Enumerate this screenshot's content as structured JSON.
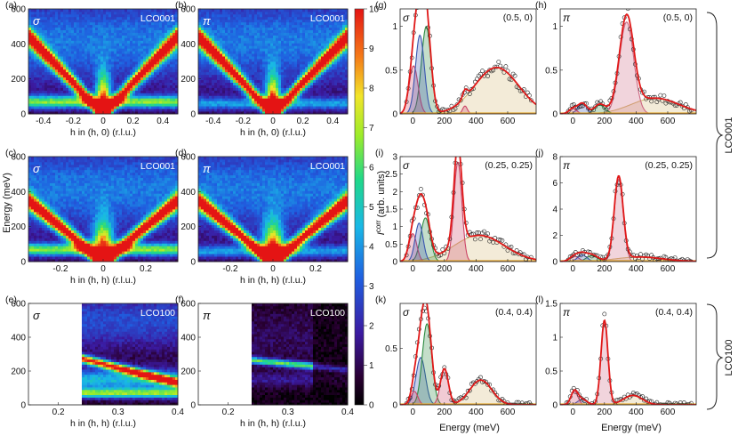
{
  "figure": {
    "colorbar": {
      "ticks": [
        "0",
        "1",
        "2",
        "3",
        "4",
        "5",
        "6",
        "7",
        "8",
        "9",
        "10"
      ],
      "vmin": 0,
      "vmax": 10
    },
    "ylabel_energy": "Energy (meV)",
    "xlabel_energy": "Energy (meV)",
    "ylabel_intensity_main": "I",
    "ylabel_intensity_sup": "corr",
    "ylabel_intensity_unit": "(arb. units)",
    "bracket_labels": [
      "LCO001",
      "LCO100"
    ]
  },
  "chart_data": [
    {
      "id": "a",
      "type": "heatmap",
      "panel": "(a)",
      "pol": "σ",
      "sample": "LCO001",
      "xlabel": "h in (h, 0) (r.l.u.)",
      "xlim": [
        -0.5,
        0.5
      ],
      "xticks": [
        "-0.4",
        "-0.2",
        "0",
        "0.2",
        "0.4"
      ],
      "ylim": [
        0,
        600
      ],
      "yticks": [
        "0",
        "200",
        "400",
        "600"
      ],
      "dispersion": "400|h|/0.45"
    },
    {
      "id": "b",
      "type": "heatmap",
      "panel": "(b)",
      "pol": "π",
      "sample": "LCO001",
      "xlabel": "h in (h, 0) (r.l.u.)",
      "xlim": [
        -0.5,
        0.5
      ],
      "xticks": [
        "-0.4",
        "-0.2",
        "0",
        "0.2",
        "0.4"
      ],
      "ylim": [
        0,
        600
      ],
      "yticks": [
        "0",
        "200",
        "400",
        "600"
      ],
      "dispersion": "400|h|/0.45"
    },
    {
      "id": "c",
      "type": "heatmap",
      "panel": "(c)",
      "pol": "σ",
      "sample": "LCO001",
      "xlabel": "h in (h, h) (r.l.u.)",
      "xlim": [
        -0.35,
        0.35
      ],
      "xticks": [
        "-0.2",
        "0",
        "0.2"
      ],
      "ylim": [
        0,
        600
      ],
      "yticks": [
        "0",
        "200",
        "400",
        "600"
      ],
      "dispersion": "300|h|/0.3"
    },
    {
      "id": "d",
      "type": "heatmap",
      "panel": "(d)",
      "pol": "π",
      "sample": "LCO001",
      "xlabel": "h in (h, h) (r.l.u.)",
      "xlim": [
        -0.35,
        0.35
      ],
      "xticks": [
        "-0.2",
        "0",
        "0.2"
      ],
      "ylim": [
        0,
        600
      ],
      "yticks": [
        "0",
        "200",
        "400",
        "600"
      ],
      "dispersion": "300|h|/0.3"
    },
    {
      "id": "e",
      "type": "heatmap",
      "panel": "(e)",
      "pol": "σ",
      "sample": "LCO100",
      "xlabel": "h in (h, h) (r.l.u.)",
      "xlim": [
        0.15,
        0.4
      ],
      "xticks": [
        "0.2",
        "0.3",
        "0.4"
      ],
      "ylim": [
        0,
        600
      ],
      "yticks": [
        "0",
        "200",
        "400",
        "600"
      ],
      "data_xrange": [
        0.24,
        0.4
      ]
    },
    {
      "id": "f",
      "type": "heatmap",
      "panel": "(f)",
      "pol": "π",
      "sample": "LCO100",
      "xlabel": "h in (h, h) (r.l.u.)",
      "xlim": [
        0.15,
        0.4
      ],
      "xticks": [
        "0.2",
        "0.3",
        "0.4"
      ],
      "ylim": [
        0,
        600
      ],
      "yticks": [
        "0",
        "200",
        "400",
        "600"
      ],
      "data_xrange": [
        0.24,
        0.4
      ]
    },
    {
      "id": "g",
      "type": "line",
      "panel": "(g)",
      "pol": "σ",
      "q": "(0.5, 0)",
      "xlim": [
        -80,
        780
      ],
      "xticks": [
        "0",
        "200",
        "400",
        "600"
      ],
      "ylim": [
        0,
        1.2
      ],
      "yticks": [
        "0",
        "0.5",
        "1"
      ],
      "peaks": [
        {
          "c": 5,
          "a": 0.55,
          "w": 28,
          "col": "#cc4466"
        },
        {
          "c": 45,
          "a": 0.9,
          "w": 28,
          "col": "#3a56b0"
        },
        {
          "c": 85,
          "a": 1.0,
          "w": 30,
          "col": "#2b8a40"
        },
        {
          "c": 330,
          "a": 0.09,
          "w": 15,
          "col": "#cc4466"
        },
        {
          "c": 530,
          "a": 0.53,
          "w": 140,
          "col": "#d4b872"
        }
      ]
    },
    {
      "id": "h",
      "type": "line",
      "panel": "(h)",
      "pol": "π",
      "q": "(0.5, 0)",
      "xlim": [
        -80,
        780
      ],
      "xticks": [
        "0",
        "200",
        "400",
        "600"
      ],
      "ylim": [
        0,
        1.2
      ],
      "yticks": [
        "0",
        "0.5",
        "1"
      ],
      "peaks": [
        {
          "c": 0,
          "a": 0.06,
          "w": 25,
          "col": "#cc4466"
        },
        {
          "c": 60,
          "a": 0.12,
          "w": 28,
          "col": "#3a56b0"
        },
        {
          "c": 170,
          "a": 0.1,
          "w": 35,
          "col": "#2b8a40"
        },
        {
          "c": 340,
          "a": 1.05,
          "w": 45,
          "col": "#cc6680"
        },
        {
          "c": 520,
          "a": 0.18,
          "w": 150,
          "col": "#d4b872"
        }
      ]
    },
    {
      "id": "i",
      "type": "line",
      "panel": "(i)",
      "pol": "σ",
      "q": "(0.25, 0.25)",
      "xlim": [
        -80,
        780
      ],
      "xticks": [
        "0",
        "200",
        "400",
        "600"
      ],
      "ylim": [
        0,
        3
      ],
      "yticks": [
        "0",
        "0.5",
        "1",
        "1.5",
        "2",
        "2.5",
        "3"
      ],
      "peaks": [
        {
          "c": 0,
          "a": 0.8,
          "w": 25,
          "col": "#cc4466"
        },
        {
          "c": 40,
          "a": 1.1,
          "w": 25,
          "col": "#3a56b0"
        },
        {
          "c": 80,
          "a": 1.25,
          "w": 30,
          "col": "#2b8a40"
        },
        {
          "c": 285,
          "a": 2.85,
          "w": 25,
          "col": "#cc4466"
        },
        {
          "c": 420,
          "a": 0.75,
          "w": 160,
          "col": "#d4b872"
        }
      ]
    },
    {
      "id": "j",
      "type": "line",
      "panel": "(j)",
      "pol": "π",
      "q": "(0.25, 0.25)",
      "xlim": [
        -80,
        780
      ],
      "xticks": [
        "0",
        "200",
        "400",
        "600"
      ],
      "ylim": [
        0,
        8
      ],
      "yticks": [
        "0",
        "2",
        "4",
        "6",
        "8"
      ],
      "peaks": [
        {
          "c": 10,
          "a": 0.4,
          "w": 30,
          "col": "#cc4466"
        },
        {
          "c": 60,
          "a": 0.5,
          "w": 30,
          "col": "#3a56b0"
        },
        {
          "c": 120,
          "a": 0.45,
          "w": 35,
          "col": "#2b8a40"
        },
        {
          "c": 290,
          "a": 6.3,
          "w": 28,
          "col": "#cc6680"
        },
        {
          "c": 420,
          "a": 0.35,
          "w": 150,
          "col": "#d4b872"
        }
      ]
    },
    {
      "id": "k",
      "type": "line",
      "panel": "(k)",
      "pol": "σ",
      "q": "(0.4, 0.4)",
      "xlim": [
        -80,
        780
      ],
      "xticks": [
        "0",
        "200",
        "400",
        "600"
      ],
      "ylim": [
        0,
        0.9
      ],
      "yticks": [
        "0",
        "0.5"
      ],
      "peaks": [
        {
          "c": 10,
          "a": 0.12,
          "w": 22,
          "col": "#cc4466"
        },
        {
          "c": 50,
          "a": 0.42,
          "w": 30,
          "col": "#3a56b0"
        },
        {
          "c": 90,
          "a": 0.72,
          "w": 30,
          "col": "#2b8a40"
        },
        {
          "c": 200,
          "a": 0.32,
          "w": 25,
          "col": "#cc4466"
        },
        {
          "c": 430,
          "a": 0.22,
          "w": 70,
          "col": "#d4b872"
        }
      ]
    },
    {
      "id": "l",
      "type": "line",
      "panel": "(l)",
      "pol": "π",
      "q": "(0.4, 0.4)",
      "xlim": [
        -80,
        780
      ],
      "xticks": [
        "0",
        "200",
        "400",
        "600"
      ],
      "ylim": [
        0,
        1.5
      ],
      "yticks": [
        "0",
        "0.5",
        "1",
        "1.5"
      ],
      "peaks": [
        {
          "c": 10,
          "a": 0.2,
          "w": 22,
          "col": "#cc4466"
        },
        {
          "c": 60,
          "a": 0.08,
          "w": 30,
          "col": "#3a56b0"
        },
        {
          "c": 200,
          "a": 1.25,
          "w": 22,
          "col": "#cc6680"
        },
        {
          "c": 380,
          "a": 0.14,
          "w": 60,
          "col": "#d4b872"
        }
      ]
    }
  ]
}
